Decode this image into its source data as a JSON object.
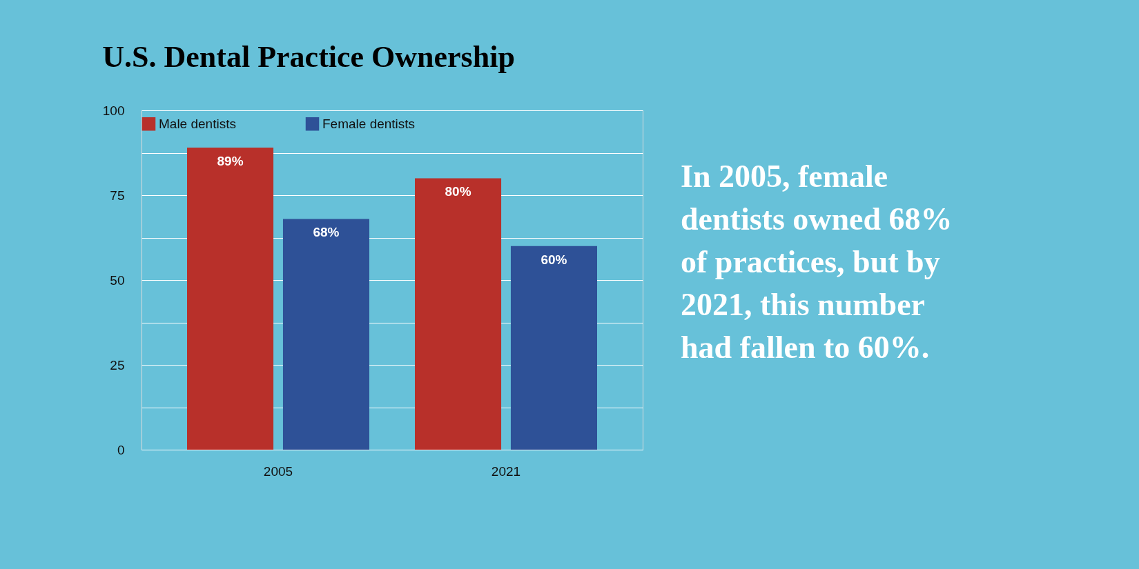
{
  "chart_data": {
    "type": "bar",
    "title": "U.S. Dental Practice Ownership",
    "categories": [
      "2005",
      "2021"
    ],
    "series": [
      {
        "name": "Male dentists",
        "color": "#b8302a",
        "values": [
          89,
          80
        ]
      },
      {
        "name": "Female dentists",
        "color": "#2e5197",
        "values": [
          68,
          60
        ]
      }
    ],
    "value_labels": [
      [
        "89%",
        "80%"
      ],
      [
        "68%",
        "60%"
      ]
    ],
    "ylim": [
      0,
      100
    ],
    "yticks": [
      0,
      {
        "value": 12.5,
        "label": null
      },
      25,
      {
        "value": 37.5,
        "label": null
      },
      50,
      {
        "value": 62.5,
        "label": null
      },
      75,
      {
        "value": 87.5,
        "label": null
      },
      100
    ],
    "grid": "y",
    "legend": "top",
    "annotations": [
      "In 2005, female dentists owned 68% of practices, but by 2021, this number had fallen to 60%."
    ]
  }
}
